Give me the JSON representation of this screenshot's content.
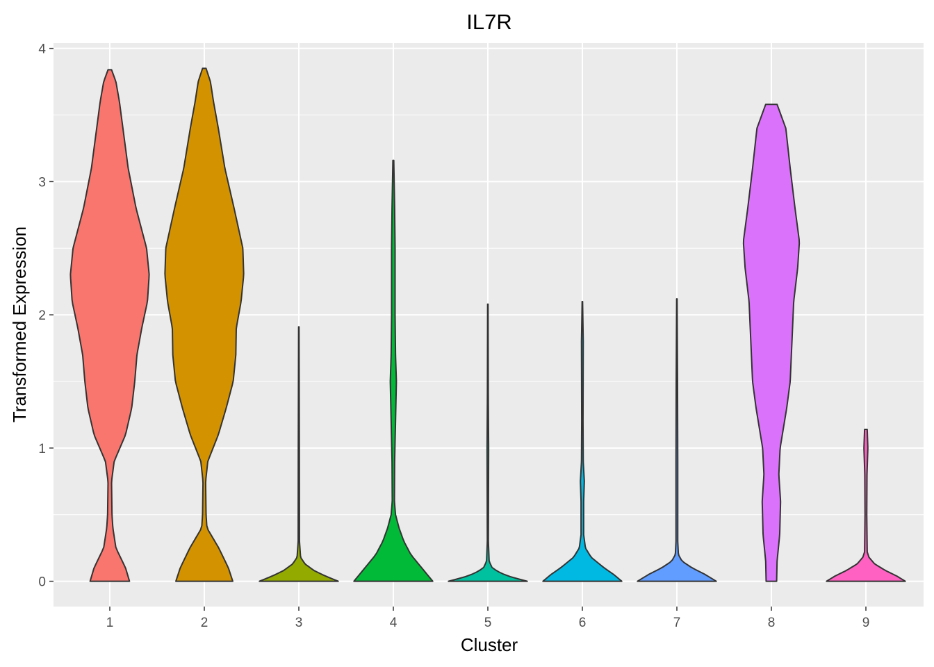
{
  "chart_data": {
    "type": "violin",
    "title": "IL7R",
    "xlabel": "Cluster",
    "ylabel": "Transformed Expression",
    "ylim": [
      -0.19,
      4.04
    ],
    "yticks": [
      0,
      1,
      2,
      3,
      4
    ],
    "grid": true,
    "legend": "none",
    "background": "#ebebeb",
    "outline_color": "#333333",
    "categories": [
      "1",
      "2",
      "3",
      "4",
      "5",
      "6",
      "7",
      "8",
      "9"
    ],
    "series": [
      {
        "color": "#F8766D",
        "max": 3.84,
        "profile": [
          [
            0,
            0.45
          ],
          [
            0.1,
            0.36
          ],
          [
            0.25,
            0.14
          ],
          [
            0.4,
            0.07
          ],
          [
            0.5,
            0.05
          ],
          [
            0.75,
            0.04
          ],
          [
            0.9,
            0.1
          ],
          [
            1.1,
            0.36
          ],
          [
            1.3,
            0.5
          ],
          [
            1.5,
            0.57
          ],
          [
            1.7,
            0.62
          ],
          [
            1.9,
            0.73
          ],
          [
            2.1,
            0.86
          ],
          [
            2.3,
            0.9
          ],
          [
            2.5,
            0.84
          ],
          [
            2.8,
            0.6
          ],
          [
            3.1,
            0.42
          ],
          [
            3.4,
            0.3
          ],
          [
            3.6,
            0.22
          ],
          [
            3.75,
            0.14
          ],
          [
            3.84,
            0.04
          ]
        ]
      },
      {
        "color": "#D39200",
        "max": 3.85,
        "profile": [
          [
            0,
            0.65
          ],
          [
            0.1,
            0.55
          ],
          [
            0.25,
            0.33
          ],
          [
            0.4,
            0.06
          ],
          [
            0.5,
            0.04
          ],
          [
            0.75,
            0.03
          ],
          [
            0.9,
            0.08
          ],
          [
            1.1,
            0.32
          ],
          [
            1.3,
            0.5
          ],
          [
            1.5,
            0.66
          ],
          [
            1.7,
            0.72
          ],
          [
            1.9,
            0.73
          ],
          [
            2.1,
            0.84
          ],
          [
            2.3,
            0.9
          ],
          [
            2.5,
            0.88
          ],
          [
            2.8,
            0.68
          ],
          [
            3.1,
            0.47
          ],
          [
            3.4,
            0.32
          ],
          [
            3.6,
            0.21
          ],
          [
            3.75,
            0.14
          ],
          [
            3.85,
            0.04
          ]
        ]
      },
      {
        "color": "#93AA00",
        "max": 1.91,
        "profile": [
          [
            0,
            0.9
          ],
          [
            0.04,
            0.6
          ],
          [
            0.08,
            0.35
          ],
          [
            0.13,
            0.14
          ],
          [
            0.18,
            0.04
          ],
          [
            0.3,
            0.015
          ],
          [
            1.0,
            0.012
          ],
          [
            1.91,
            0.005
          ]
        ]
      },
      {
        "color": "#00BA38",
        "max": 3.16,
        "profile": [
          [
            0,
            0.9
          ],
          [
            0.1,
            0.65
          ],
          [
            0.2,
            0.4
          ],
          [
            0.3,
            0.24
          ],
          [
            0.4,
            0.13
          ],
          [
            0.5,
            0.05
          ],
          [
            0.6,
            0.025
          ],
          [
            0.9,
            0.03
          ],
          [
            1.2,
            0.05
          ],
          [
            1.5,
            0.07
          ],
          [
            1.7,
            0.05
          ],
          [
            2.0,
            0.04
          ],
          [
            2.5,
            0.04
          ],
          [
            2.8,
            0.03
          ],
          [
            3.16,
            0.01
          ]
        ]
      },
      {
        "color": "#00C19F",
        "max": 2.08,
        "profile": [
          [
            0,
            0.9
          ],
          [
            0.03,
            0.55
          ],
          [
            0.06,
            0.3
          ],
          [
            0.1,
            0.1
          ],
          [
            0.15,
            0.03
          ],
          [
            0.3,
            0.012
          ],
          [
            1.0,
            0.018
          ],
          [
            1.4,
            0.01
          ],
          [
            2.08,
            0.005
          ]
        ]
      },
      {
        "color": "#00B9E3",
        "max": 2.1,
        "profile": [
          [
            0,
            0.9
          ],
          [
            0.05,
            0.72
          ],
          [
            0.1,
            0.5
          ],
          [
            0.18,
            0.2
          ],
          [
            0.25,
            0.07
          ],
          [
            0.35,
            0.03
          ],
          [
            0.6,
            0.03
          ],
          [
            0.75,
            0.045
          ],
          [
            0.9,
            0.02
          ],
          [
            1.2,
            0.015
          ],
          [
            1.8,
            0.02
          ],
          [
            2.1,
            0.005
          ]
        ]
      },
      {
        "color": "#619CFF",
        "max": 2.12,
        "profile": [
          [
            0,
            0.9
          ],
          [
            0.05,
            0.65
          ],
          [
            0.1,
            0.35
          ],
          [
            0.15,
            0.12
          ],
          [
            0.2,
            0.035
          ],
          [
            0.3,
            0.02
          ],
          [
            0.9,
            0.02
          ],
          [
            1.5,
            0.015
          ],
          [
            2.12,
            0.005
          ]
        ]
      },
      {
        "color": "#DB72FB",
        "max": 3.58,
        "profile": [
          [
            0,
            0.12
          ],
          [
            0.15,
            0.13
          ],
          [
            0.35,
            0.19
          ],
          [
            0.6,
            0.21
          ],
          [
            0.8,
            0.17
          ],
          [
            1.0,
            0.2
          ],
          [
            1.3,
            0.35
          ],
          [
            1.5,
            0.43
          ],
          [
            1.8,
            0.47
          ],
          [
            2.1,
            0.51
          ],
          [
            2.35,
            0.6
          ],
          [
            2.55,
            0.64
          ],
          [
            2.8,
            0.54
          ],
          [
            3.1,
            0.43
          ],
          [
            3.4,
            0.33
          ],
          [
            3.58,
            0.13
          ]
        ]
      },
      {
        "color": "#FF61C3",
        "max": 1.14,
        "profile": [
          [
            0,
            0.9
          ],
          [
            0.04,
            0.7
          ],
          [
            0.08,
            0.45
          ],
          [
            0.13,
            0.2
          ],
          [
            0.18,
            0.07
          ],
          [
            0.22,
            0.03
          ],
          [
            0.5,
            0.02
          ],
          [
            0.8,
            0.025
          ],
          [
            1.0,
            0.045
          ],
          [
            1.14,
            0.03
          ]
        ]
      }
    ]
  }
}
